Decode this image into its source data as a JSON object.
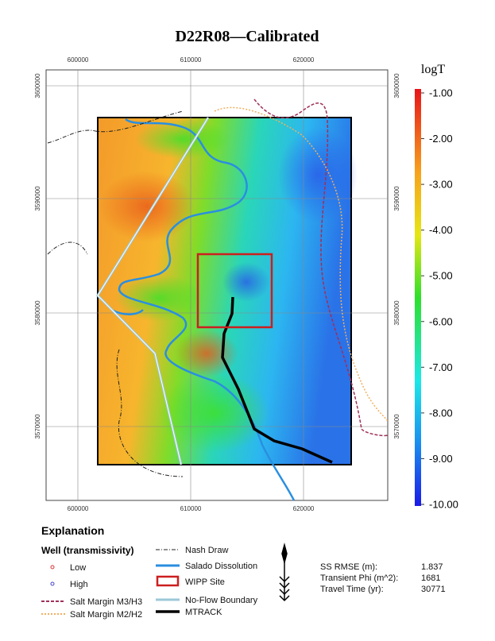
{
  "map": {
    "title": "D22R08—Calibrated",
    "x_ticks": [
      "600000",
      "610000",
      "620000"
    ],
    "y_ticks": [
      "3600000",
      "3590000",
      "3580000",
      "3570000"
    ],
    "colorbar": {
      "label": "logT",
      "ticks": [
        "-1.00",
        "-2.00",
        "-3.00",
        "-4.00",
        "-5.00",
        "-6.00",
        "-7.00",
        "-8.00",
        "-9.00",
        "-10.00"
      ]
    },
    "legend": {
      "heading": "Explanation",
      "well_heading": "Well (transmissivity)",
      "wells": [
        "Low",
        "High"
      ],
      "margins": [
        "Salt Margin M3/H3",
        "Salt Margin M2/H2"
      ],
      "features": [
        "Nash Draw",
        "Salado Dissolution",
        "WIPP Site",
        "No-Flow Boundary",
        "MTRACK"
      ]
    },
    "stats": [
      {
        "label": "SS RMSE (m):",
        "value": "1.837"
      },
      {
        "label": "Transient Phi (m^2):",
        "value": "1681"
      },
      {
        "label": "Travel Time (yr):",
        "value": "30771"
      }
    ]
  }
}
